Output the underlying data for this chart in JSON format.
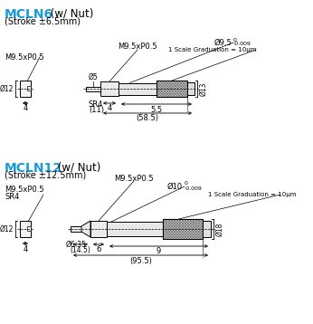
{
  "title1": "MCLN6",
  "title1_suffix": " (w/ Nut)",
  "subtitle1": "(Stroke ±6.5mm)",
  "title2": "MCLN12",
  "title2_suffix": " (w/ Nut)",
  "subtitle2": "(Stroke ±12.5mm)",
  "bg_color": "#ffffff",
  "line_color": "#000000",
  "title_color": "#1a9ad6"
}
